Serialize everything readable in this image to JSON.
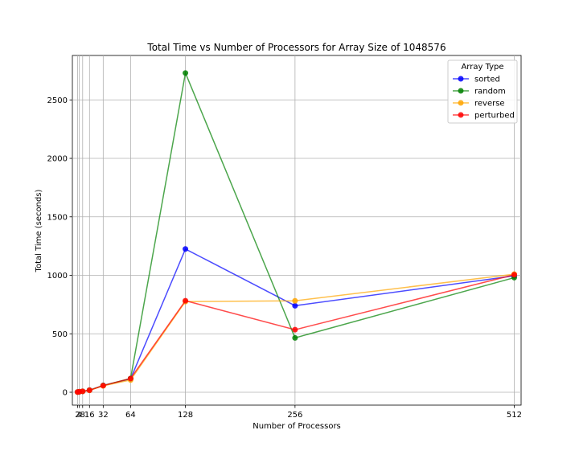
{
  "chart_data": {
    "type": "line",
    "title": "Total Time vs Number of Processors for Array Size of 1048576",
    "xlabel": "Number of Processors",
    "ylabel": "Total Time (seconds)",
    "x": [
      2,
      4,
      8,
      16,
      32,
      64,
      128,
      256,
      512
    ],
    "x_tick_labels": [
      "2",
      "4",
      "8",
      "16",
      "32",
      "64",
      "128",
      "256",
      "512"
    ],
    "xlim": [
      -4,
      520
    ],
    "ylim": [
      -110,
      2880
    ],
    "yticks": [
      0,
      500,
      1000,
      1500,
      2000,
      2500
    ],
    "grid": true,
    "legend": {
      "title": "Array Type",
      "position": "top-right"
    },
    "series": [
      {
        "name": "sorted",
        "color": "#0000ff",
        "values": [
          2,
          4,
          8,
          18,
          58,
          115,
          1225,
          740,
          995
        ]
      },
      {
        "name": "random",
        "color": "#008000",
        "values": [
          2,
          4,
          8,
          18,
          58,
          118,
          2730,
          465,
          980
        ]
      },
      {
        "name": "reverse",
        "color": "#ffa500",
        "values": [
          2,
          4,
          8,
          16,
          55,
          105,
          775,
          782,
          1010
        ]
      },
      {
        "name": "perturbed",
        "color": "#ff0000",
        "values": [
          2,
          4,
          8,
          17,
          57,
          118,
          783,
          535,
          1005
        ]
      }
    ]
  }
}
